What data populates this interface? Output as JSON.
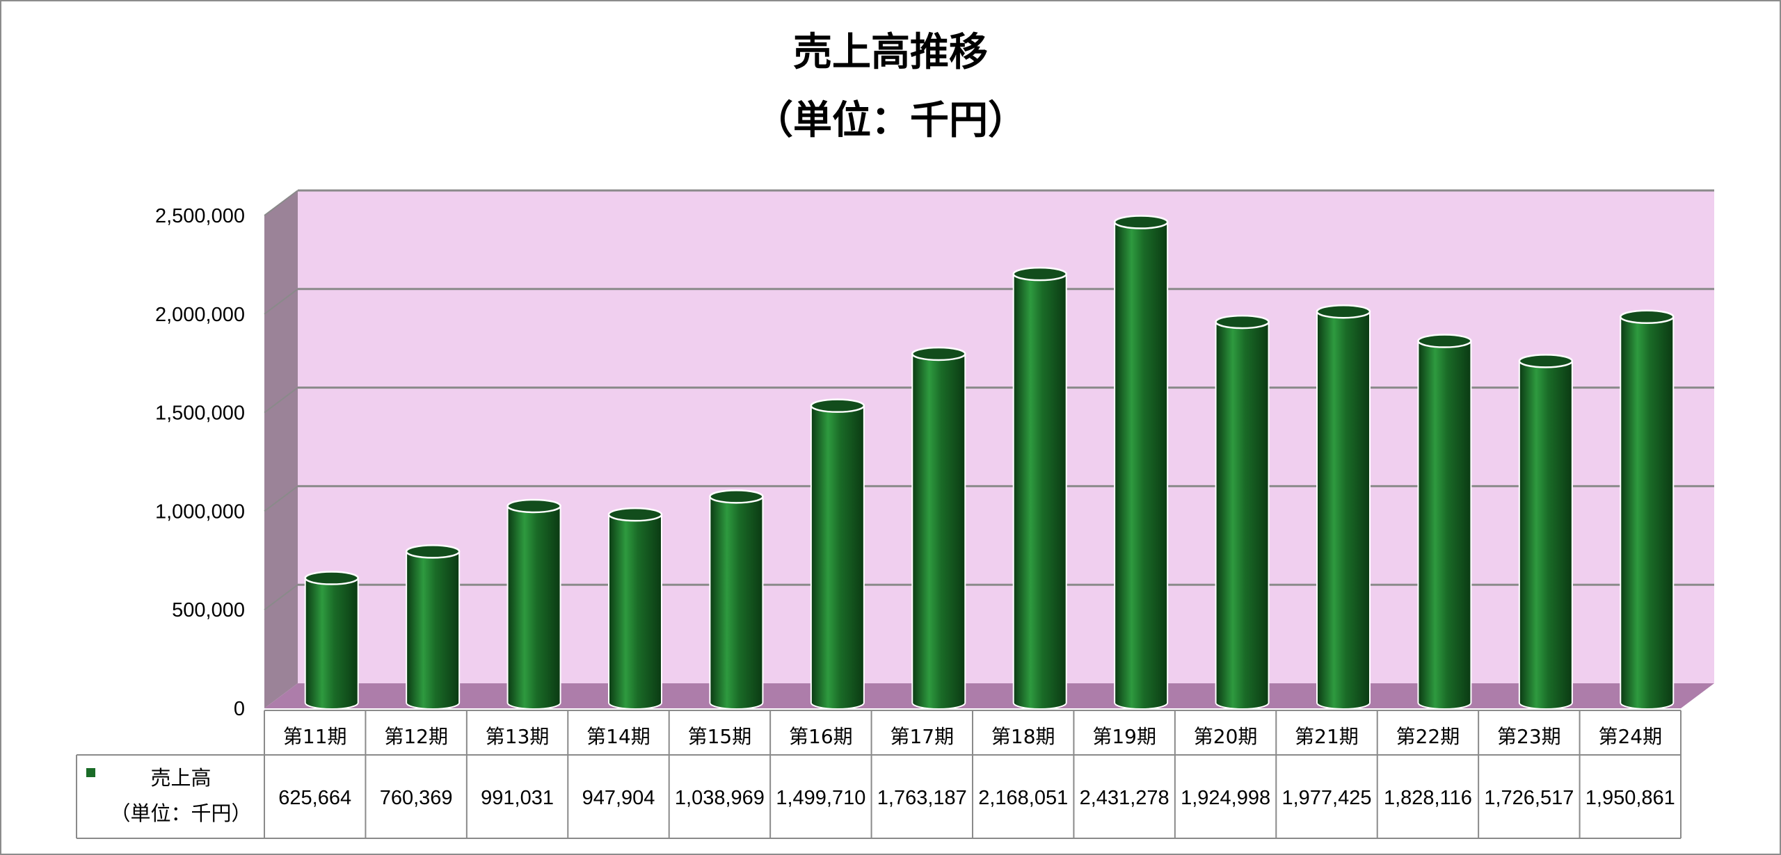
{
  "chart_data": {
    "type": "bar",
    "style": "3d-cylinder",
    "title_lines": [
      "売上高推移",
      "（単位：千円）"
    ],
    "categories": [
      "第11期",
      "第12期",
      "第13期",
      "第14期",
      "第15期",
      "第16期",
      "第17期",
      "第18期",
      "第19期",
      "第20期",
      "第21期",
      "第22期",
      "第23期",
      "第24期"
    ],
    "series": [
      {
        "name": "売上高",
        "name_sub": "（単位：千円）",
        "values": [
          625664,
          760369,
          991031,
          947904,
          1038969,
          1499710,
          1763187,
          2168051,
          2431278,
          1924998,
          1977425,
          1828116,
          1726517,
          1950861
        ],
        "value_labels": [
          "625,664",
          "760,369",
          "991,031",
          "947,904",
          "1,038,969",
          "1,499,710",
          "1,763,187",
          "2,168,051",
          "2,431,278",
          "1,924,998",
          "1,977,425",
          "1,828,116",
          "1,726,517",
          "1,950,861"
        ]
      }
    ],
    "ylim": [
      0,
      2500000
    ],
    "yticks": [
      0,
      500000,
      1000000,
      1500000,
      2000000,
      2500000
    ],
    "ytick_labels": [
      "0",
      "500,000",
      "1,000,000",
      "1,500,000",
      "2,000,000",
      "2,500,000"
    ],
    "grid": true,
    "legend": "data-table",
    "colors": {
      "bar": "#1a6b27",
      "bar_dark": "#0b3a13",
      "bar_light": "#2e9a3f",
      "back_wall": "#f0cfef",
      "side_wall": "#9b8398",
      "floor": "#ad7daa",
      "grid": "#8a8a8a"
    }
  }
}
